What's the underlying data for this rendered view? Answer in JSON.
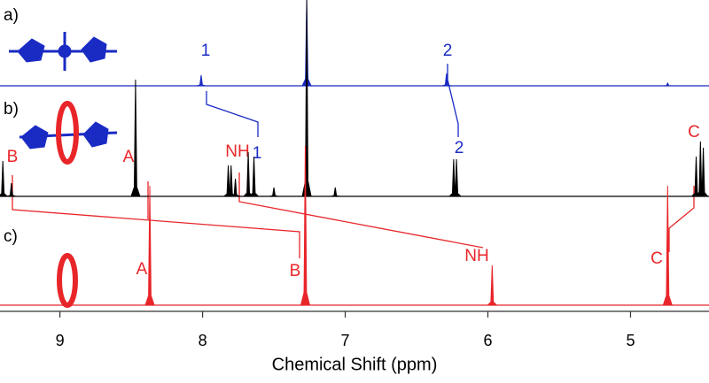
{
  "chart_data": {
    "type": "spectrum",
    "x_label": "Chemical Shift (ppm)",
    "xlim": [
      9.42,
      4.45
    ],
    "xticks": [
      9,
      8,
      7,
      6,
      5
    ],
    "series": [
      {
        "name": "a)",
        "color": "#1a2bc4",
        "x": [
          8.01,
          7.27,
          6.29,
          4.74
        ],
        "values": [
          12,
          97,
          14,
          3
        ],
        "labels": [
          "1",
          "2"
        ]
      },
      {
        "name": "b)",
        "color": "#000000",
        "x": [
          9.4,
          9.34,
          8.47,
          7.82,
          7.8,
          7.77,
          7.68,
          7.64,
          7.5,
          7.27,
          7.07,
          6.24,
          6.22,
          4.54,
          4.51,
          4.49
        ],
        "values": [
          40,
          15,
          132,
          35,
          35,
          20,
          50,
          45,
          10,
          222,
          10,
          42,
          42,
          45,
          62,
          55
        ],
        "labels": [
          "B",
          "A",
          "NH",
          "1",
          "2",
          "C"
        ]
      },
      {
        "name": "c)",
        "color": "#e8262a",
        "x": [
          8.37,
          7.28,
          5.97,
          4.74
        ],
        "values": [
          135,
          180,
          45,
          135
        ],
        "labels": [
          "A",
          "B",
          "NH",
          "C"
        ]
      }
    ]
  }
}
